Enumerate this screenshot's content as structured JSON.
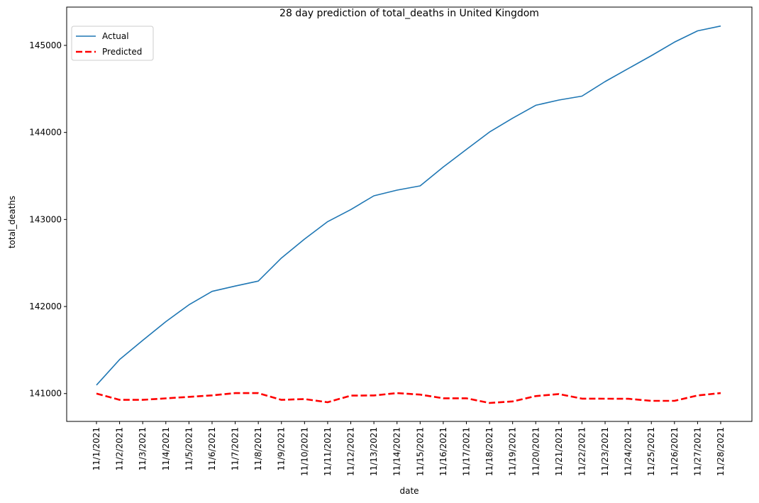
{
  "chart_data": {
    "type": "line",
    "title": "28 day prediction of total_deaths in United Kingdom",
    "xlabel": "date",
    "ylabel": "total_deaths",
    "categories": [
      "11/1/2021",
      "11/2/2021",
      "11/3/2021",
      "11/4/2021",
      "11/5/2021",
      "11/6/2021",
      "11/7/2021",
      "11/8/2021",
      "11/9/2021",
      "11/10/2021",
      "11/11/2021",
      "11/12/2021",
      "11/13/2021",
      "11/14/2021",
      "11/15/2021",
      "11/16/2021",
      "11/17/2021",
      "11/18/2021",
      "11/19/2021",
      "11/20/2021",
      "11/21/2021",
      "11/22/2021",
      "11/23/2021",
      "11/24/2021",
      "11/25/2021",
      "11/26/2021",
      "11/27/2021",
      "11/28/2021"
    ],
    "yticks": [
      "141000",
      "142000",
      "143000",
      "144000",
      "145000"
    ],
    "ylim": [
      140680,
      145440
    ],
    "grid": false,
    "legend_position": "upper left",
    "series": [
      {
        "name": "Actual",
        "color": "#1f77b4",
        "style": "solid",
        "values": [
          141097,
          141391,
          141611,
          141826,
          142020,
          142174,
          142235,
          142292,
          142557,
          142775,
          142975,
          143114,
          143272,
          143337,
          143386,
          143603,
          143805,
          144005,
          144164,
          144312,
          144372,
          144417,
          144584,
          144733,
          144882,
          145037,
          145167,
          145222
        ]
      },
      {
        "name": "Predicted",
        "color": "#ff0000",
        "style": "dashed",
        "values": [
          141000,
          140928,
          140928,
          140945,
          140962,
          140979,
          141005,
          141005,
          140928,
          140937,
          140900,
          140977,
          140978,
          141005,
          140988,
          140946,
          140946,
          140892,
          140910,
          140971,
          140995,
          140942,
          140941,
          140940,
          140916,
          140916,
          140978,
          141005
        ]
      }
    ]
  }
}
